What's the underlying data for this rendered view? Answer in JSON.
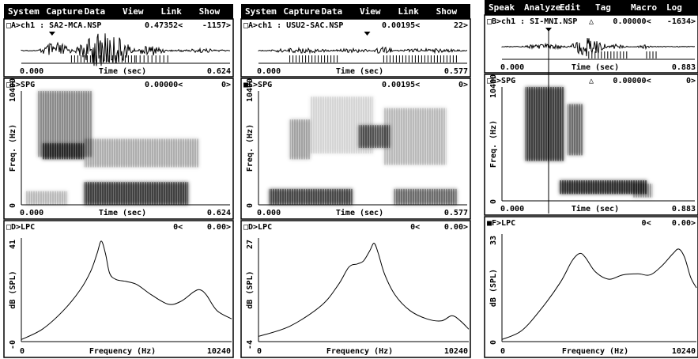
{
  "panels": [
    {
      "menu": [
        "System",
        "Capture",
        "Data",
        "View",
        "Link",
        "Show"
      ],
      "waveform": {
        "label": "□A>ch1 : SA2-MCA.NSP",
        "cursor": "0.47352<",
        "value": "-1157>",
        "x_start": "0.000",
        "x_label": "Time (sec)",
        "x_end": "0.624"
      },
      "spectrogram": {
        "label": "□C>SPG",
        "cursor": "0.00000<",
        "value": "0>",
        "y_top": "10400",
        "y_label": "Freq. (Hz)",
        "y_bottom": "0",
        "x_start": "0.000",
        "x_label": "Time (sec)",
        "x_end": "0.624"
      },
      "lpc": {
        "label": "□D>LPC",
        "cursor": "0<",
        "value": "0.00>",
        "y_top": "41",
        "y_label": "dB (SPL)",
        "y_bottom": "-0",
        "x_start": "0",
        "x_label": "Frequency (Hz)",
        "x_end": "10240"
      }
    },
    {
      "menu": [
        "System",
        "Capture",
        "Data",
        "View",
        "Link",
        "Show"
      ],
      "waveform": {
        "label": "□A>ch1 : USU2-SAC.NSP",
        "cursor": "0.00195<",
        "value": "22>",
        "x_start": "0.000",
        "x_label": "Time (sec)",
        "x_end": "0.577"
      },
      "spectrogram": {
        "label": "■C>SPG",
        "cursor": "0.00195<",
        "value": "0>",
        "y_top": "10400",
        "y_label": "Freq. (Hz)",
        "y_bottom": "0",
        "x_start": "0.000",
        "x_label": "Time (sec)",
        "x_end": "0.577"
      },
      "lpc": {
        "label": "□D>LPC",
        "cursor": "0<",
        "value": "0.00>",
        "y_top": "27",
        "y_label": "dB (SPL)",
        "y_bottom": "-4",
        "x_start": "0",
        "x_label": "Frequency (Hz)",
        "x_end": "10240"
      }
    },
    {
      "menu": [
        "Speak",
        "Analyze",
        "Edit",
        "Tag",
        "Macro",
        "Log"
      ],
      "waveform": {
        "label": "□B>ch1 : SI-MNI.NSP",
        "marker": "△",
        "cursor": "0.00000<",
        "value": "-1634>",
        "x_start": "0.000",
        "x_label": "Time (sec)",
        "x_end": "0.883"
      },
      "spectrogram": {
        "label": "□E>SPG",
        "marker": "△",
        "cursor": "0.00000<",
        "value": "0>",
        "y_top": "10400",
        "y_label": "Freq. (Hz)",
        "y_bottom": "0",
        "x_start": "0.000",
        "x_label": "Time (sec)",
        "x_end": "0.883"
      },
      "lpc": {
        "label": "■F>LPC",
        "cursor": "0<",
        "value": "0.00>",
        "y_top": "33",
        "y_label": "dB (SPL)",
        "y_bottom": "0",
        "x_start": "0",
        "x_label": "Frequency (Hz)",
        "x_end": "10240"
      }
    }
  ]
}
